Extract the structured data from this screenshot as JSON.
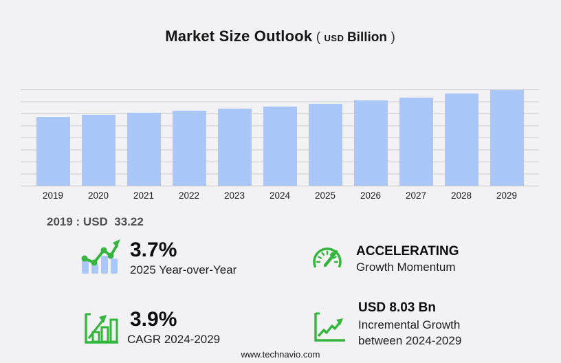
{
  "title": {
    "main": "Market Size Outlook",
    "paren_open": "(",
    "currency": "USD",
    "unit": "Billion",
    "paren_close": ")"
  },
  "chart_data": {
    "type": "bar",
    "title": "Market Size Outlook (USD Billion)",
    "categories": [
      "2019",
      "2020",
      "2021",
      "2022",
      "2023",
      "2024",
      "2025",
      "2026",
      "2027",
      "2028",
      "2029"
    ],
    "values": [
      33.22,
      34.1,
      35.0,
      36.0,
      37.0,
      38.07,
      39.48,
      40.9,
      42.5,
      44.2,
      46.1
    ],
    "xlabel": "",
    "ylabel": "",
    "ylim": [
      0,
      48
    ],
    "grid": true,
    "bar_color": "#a9c7f9",
    "gridline_color": "#cbcbcf"
  },
  "annotation": "2019 : USD  33.22",
  "stats": {
    "yoy": {
      "icon": "bar-chart-trend-icon",
      "value": "3.7%",
      "label": "2025 Year-over-Year"
    },
    "momentum": {
      "icon": "speedometer-icon",
      "value": "ACCELERATING",
      "label": "Growth Momentum"
    },
    "cagr": {
      "icon": "growth-bars-icon",
      "value": "3.9%",
      "label": "CAGR 2024-2029"
    },
    "incremental": {
      "icon": "line-growth-icon",
      "value": "USD 8.03 Bn",
      "label_line1": "Incremental Growth",
      "label_line2": "between 2024-2029"
    }
  },
  "footer": {
    "website": "www.technavio.com"
  },
  "colors": {
    "background": "#f2f2f4",
    "bar": "#a9c7f9",
    "gridline": "#cbcbcf",
    "accent_green": "#34b53c"
  }
}
